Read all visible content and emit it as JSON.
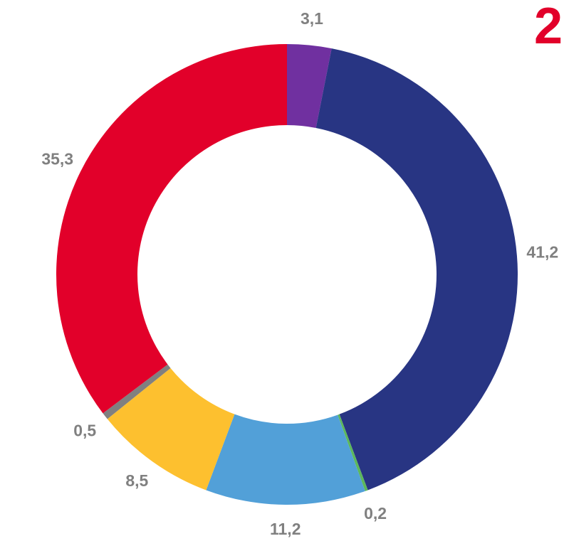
{
  "chart_data": {
    "type": "donut",
    "annotation": "2",
    "categories": [
      null,
      null,
      null,
      null,
      null,
      null,
      null
    ],
    "values": [
      3.1,
      41.2,
      0.2,
      11.2,
      8.5,
      0.5,
      35.3
    ],
    "value_labels": [
      "3,1",
      "41,2",
      "0,2",
      "11,2",
      "8,5",
      "0,5",
      "35,3"
    ],
    "colors": [
      "#7030a0",
      "#283583",
      "#5cb85c",
      "#52a0d8",
      "#fdc02f",
      "#808080",
      "#e2002a"
    ]
  }
}
